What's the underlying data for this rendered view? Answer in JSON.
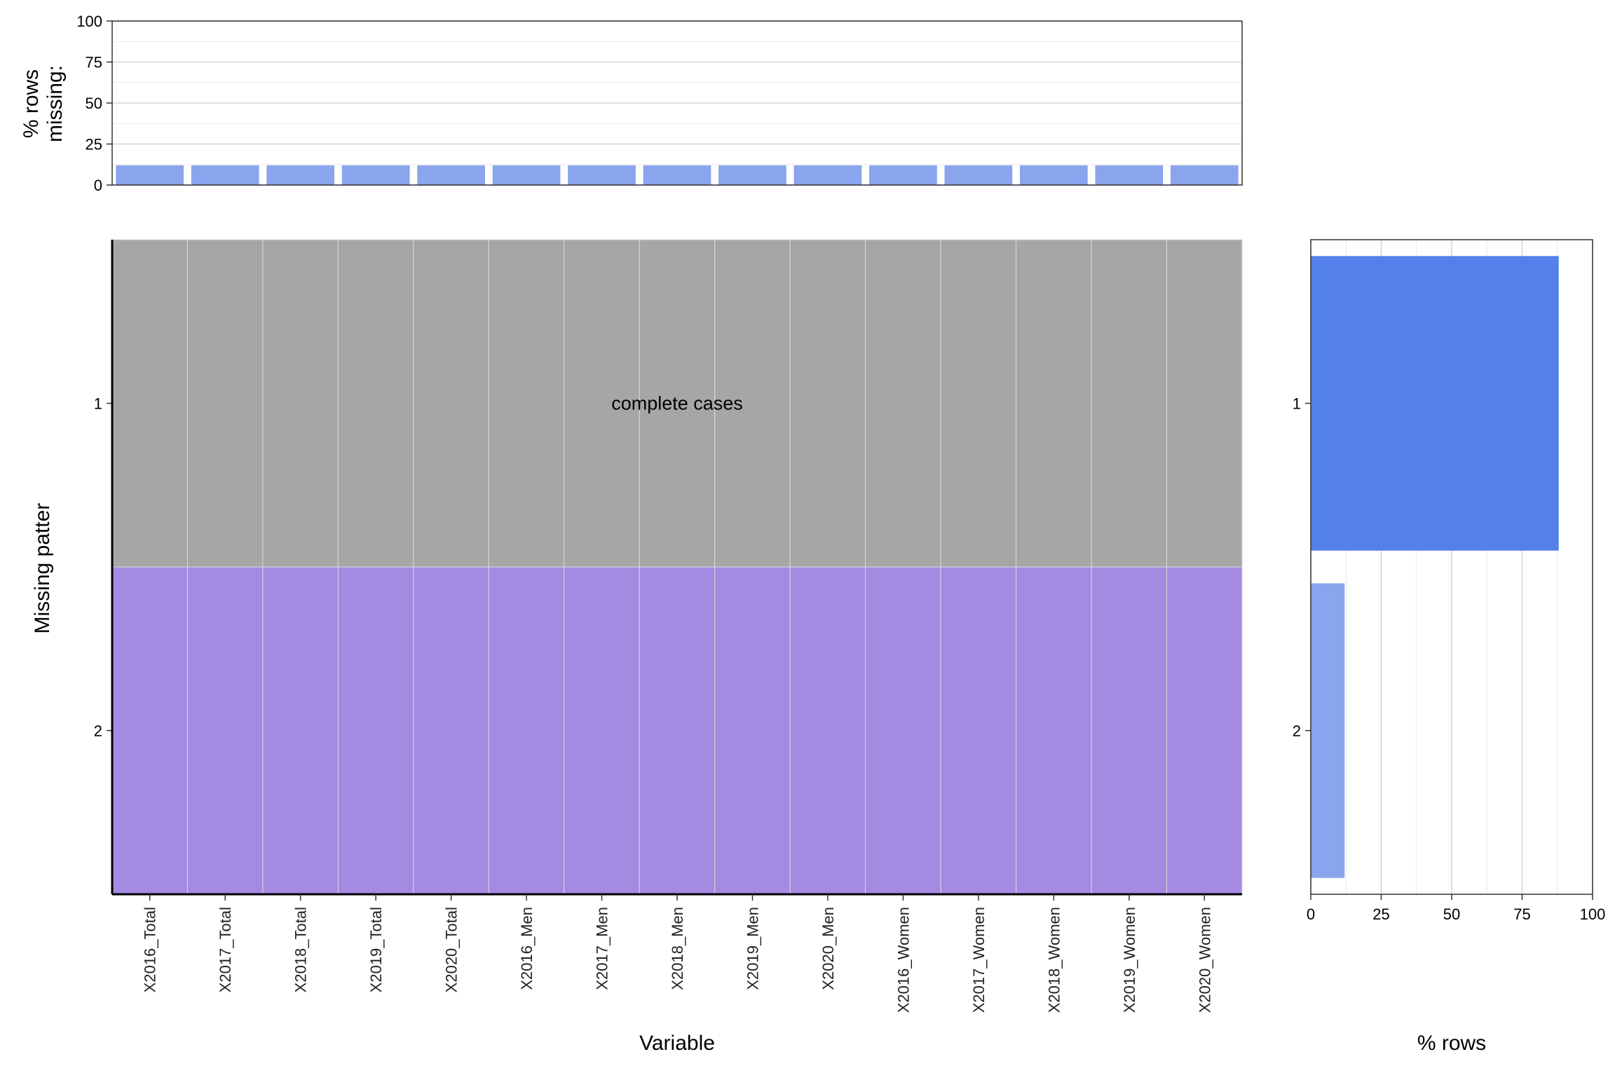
{
  "chart_data": [
    {
      "type": "bar",
      "role": "top-missing-by-variable",
      "ylabel_lines": [
        "% rows",
        "missing:"
      ],
      "ylim": [
        0,
        100
      ],
      "yticks": [
        "0",
        "25",
        "50",
        "75",
        "100"
      ],
      "grid": true,
      "categories": [
        "X2016_Total",
        "X2017_Total",
        "X2018_Total",
        "X2019_Total",
        "X2020_Total",
        "X2016_Men",
        "X2017_Men",
        "X2018_Men",
        "X2019_Men",
        "X2020_Men",
        "X2016_Women",
        "X2017_Women",
        "X2018_Women",
        "X2019_Women",
        "X2020_Women"
      ],
      "values": [
        12,
        12,
        12,
        12,
        12,
        12,
        12,
        12,
        12,
        12,
        12,
        12,
        12,
        12,
        12
      ],
      "color": "#8aa4ed"
    },
    {
      "type": "heatmap",
      "role": "missing-pattern-grid",
      "xlabel": "Variable",
      "ylabel": "Missing patter",
      "x": [
        "X2016_Total",
        "X2017_Total",
        "X2018_Total",
        "X2019_Total",
        "X2020_Total",
        "X2016_Men",
        "X2017_Men",
        "X2018_Men",
        "X2019_Men",
        "X2020_Men",
        "X2016_Women",
        "X2017_Women",
        "X2018_Women",
        "X2019_Women",
        "X2020_Women"
      ],
      "y": [
        "1",
        "2"
      ],
      "patterns": [
        {
          "label": "1",
          "missing": false,
          "color": "#a6a6a6",
          "annotation": "complete cases"
        },
        {
          "label": "2",
          "missing": true,
          "color": "#a58ae2",
          "annotation": ""
        }
      ]
    },
    {
      "type": "bar",
      "role": "right-rows-per-pattern",
      "orientation": "horizontal",
      "xlabel": "% rows",
      "xlim": [
        0,
        100
      ],
      "xticks": [
        "0",
        "25",
        "50",
        "75",
        "100"
      ],
      "grid": true,
      "categories": [
        "1",
        "2"
      ],
      "values": [
        88,
        12
      ],
      "colors": [
        "#5381e9",
        "#8aa4ed"
      ]
    }
  ]
}
